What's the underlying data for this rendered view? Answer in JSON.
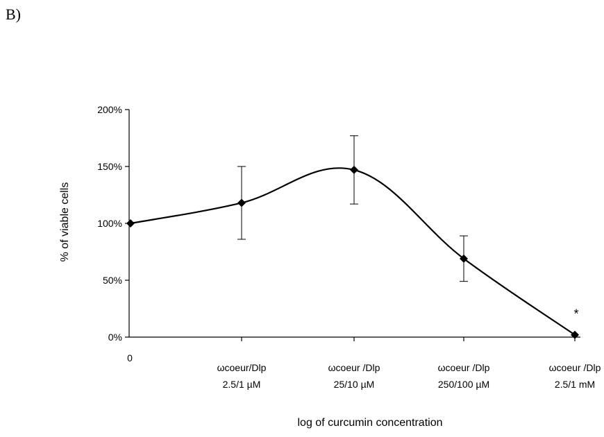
{
  "panel_label": "B)",
  "chart_data": {
    "type": "line",
    "title": "",
    "xlabel": "log of curcumin concentration",
    "ylabel": "% of viable cells",
    "ylim": [
      0,
      200
    ],
    "y_ticks": [
      "0%",
      "50%",
      "100%",
      "150%",
      "200%"
    ],
    "y_tick_values": [
      0,
      50,
      100,
      150,
      200
    ],
    "categories": [
      [
        "0"
      ],
      [
        "ωcoeur/Dlp",
        "2.5/1 µM"
      ],
      [
        "ωcoeur /Dlp",
        "25/10 µM"
      ],
      [
        "ωcoeur /Dlp",
        "250/100 µM"
      ],
      [
        "ωcoeur /Dlp",
        "2.5/1 mM"
      ]
    ],
    "values": [
      100,
      118,
      147,
      69,
      2
    ],
    "error": [
      null,
      32,
      30,
      20,
      null
    ],
    "annotations": [
      {
        "category_index": 4,
        "text": "*"
      }
    ],
    "smooth": true,
    "grid": false
  }
}
